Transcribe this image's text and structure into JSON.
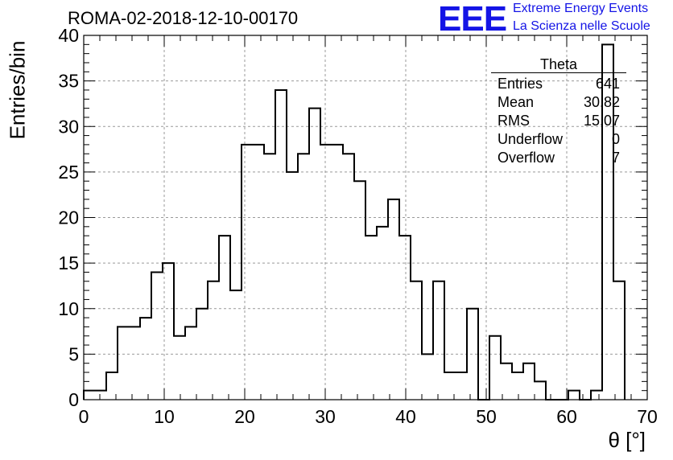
{
  "header": {
    "run_title": "ROMA-02-2018-12-10-00170",
    "logo": "EEE",
    "logo_line1": "Extreme Energy Events",
    "logo_line2": "La Scienza nelle Scuole"
  },
  "stats_box": {
    "title": "Theta",
    "rows": [
      {
        "label": "Entries",
        "value": "641"
      },
      {
        "label": "Mean",
        "value": "30.82"
      },
      {
        "label": "RMS",
        "value": "15.07"
      },
      {
        "label": "Underflow",
        "value": "0"
      },
      {
        "label": "Overflow",
        "value": "7"
      }
    ]
  },
  "chart_data": {
    "type": "bar",
    "style": "step-histogram",
    "title": "ROMA-02-2018-12-10-00170",
    "xlabel": "θ [°]",
    "ylabel": "Entries/bin",
    "xlim": [
      0,
      70
    ],
    "ylim": [
      0,
      40
    ],
    "bin_width": 1.4,
    "bin_edges_start": 0,
    "values": [
      1,
      1,
      3,
      8,
      8,
      9,
      14,
      15,
      7,
      8,
      10,
      13,
      18,
      12,
      28,
      28,
      27,
      34,
      25,
      27,
      32,
      28,
      28,
      27,
      24,
      18,
      19,
      22,
      18,
      13,
      5,
      13,
      3,
      3,
      10,
      0,
      7,
      4,
      3,
      4,
      2,
      0,
      0,
      1,
      0,
      1,
      39,
      13
    ],
    "x_ticks": [
      "0",
      "10",
      "20",
      "30",
      "40",
      "50",
      "60",
      "70"
    ],
    "y_ticks": [
      "0",
      "5",
      "10",
      "15",
      "20",
      "25",
      "30",
      "35",
      "40"
    ],
    "grid": true,
    "line_color": "#000000",
    "grid_color": "#999999"
  }
}
